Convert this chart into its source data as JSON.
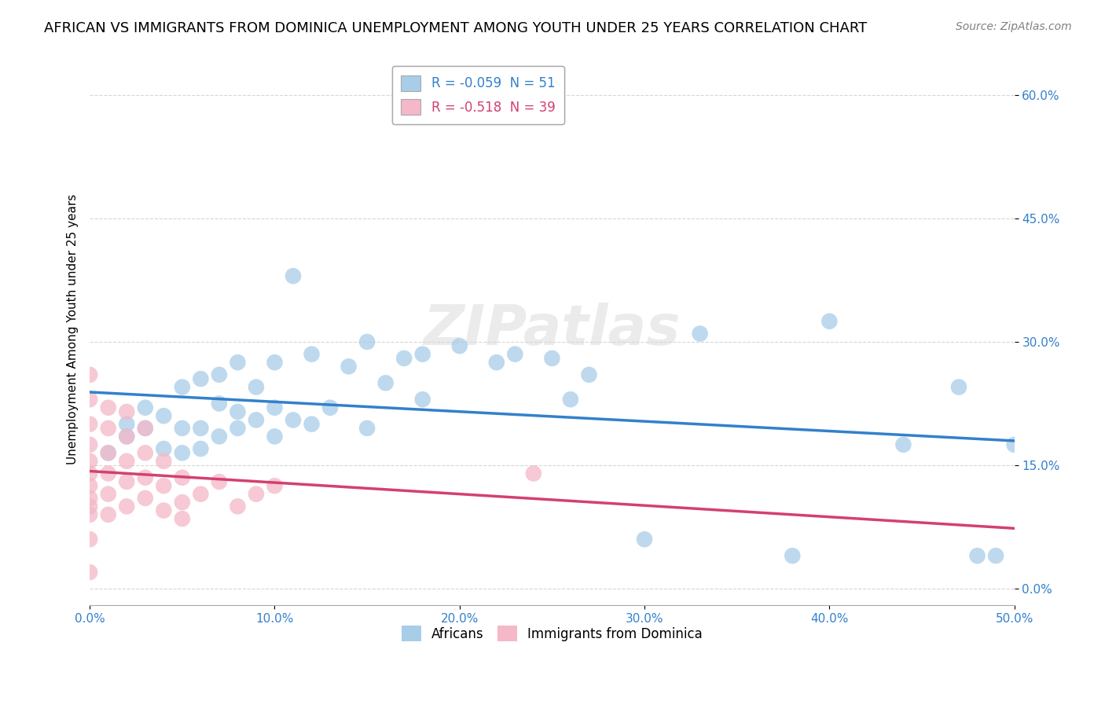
{
  "title": "AFRICAN VS IMMIGRANTS FROM DOMINICA UNEMPLOYMENT AMONG YOUTH UNDER 25 YEARS CORRELATION CHART",
  "source": "Source: ZipAtlas.com",
  "xlim": [
    0,
    0.5
  ],
  "ylim": [
    -0.02,
    0.65
  ],
  "legend_blue": "R = -0.059  N = 51",
  "legend_pink": "R = -0.518  N = 39",
  "legend_label_blue": "Africans",
  "legend_label_pink": "Immigrants from Dominica",
  "blue_color": "#a8cde8",
  "pink_color": "#f4b8c8",
  "blue_line_color": "#3380cc",
  "pink_line_color": "#d44070",
  "watermark_color": "#d8d8d8",
  "watermark_alpha": 0.5,
  "title_fontsize": 13,
  "source_fontsize": 10,
  "axis_label_fontsize": 11,
  "tick_fontsize": 11,
  "watermark_fontsize": 52,
  "africans_x": [
    0.01,
    0.02,
    0.02,
    0.03,
    0.03,
    0.04,
    0.04,
    0.05,
    0.05,
    0.05,
    0.06,
    0.06,
    0.06,
    0.07,
    0.07,
    0.07,
    0.08,
    0.08,
    0.08,
    0.09,
    0.09,
    0.1,
    0.1,
    0.1,
    0.11,
    0.11,
    0.12,
    0.12,
    0.13,
    0.14,
    0.15,
    0.15,
    0.16,
    0.17,
    0.18,
    0.18,
    0.2,
    0.22,
    0.23,
    0.25,
    0.26,
    0.27,
    0.3,
    0.33,
    0.38,
    0.4,
    0.44,
    0.47,
    0.48,
    0.49,
    0.5
  ],
  "africans_y": [
    0.165,
    0.185,
    0.2,
    0.195,
    0.22,
    0.17,
    0.21,
    0.165,
    0.195,
    0.245,
    0.17,
    0.195,
    0.255,
    0.185,
    0.225,
    0.26,
    0.195,
    0.215,
    0.275,
    0.205,
    0.245,
    0.185,
    0.22,
    0.275,
    0.205,
    0.38,
    0.2,
    0.285,
    0.22,
    0.27,
    0.195,
    0.3,
    0.25,
    0.28,
    0.23,
    0.285,
    0.295,
    0.275,
    0.285,
    0.28,
    0.23,
    0.26,
    0.06,
    0.31,
    0.04,
    0.325,
    0.175,
    0.245,
    0.04,
    0.04,
    0.175
  ],
  "dominica_x": [
    0.0,
    0.0,
    0.0,
    0.0,
    0.0,
    0.0,
    0.0,
    0.0,
    0.0,
    0.0,
    0.0,
    0.0,
    0.01,
    0.01,
    0.01,
    0.01,
    0.01,
    0.01,
    0.02,
    0.02,
    0.02,
    0.02,
    0.02,
    0.03,
    0.03,
    0.03,
    0.03,
    0.04,
    0.04,
    0.04,
    0.05,
    0.05,
    0.05,
    0.06,
    0.07,
    0.08,
    0.09,
    0.1,
    0.24
  ],
  "dominica_y": [
    0.23,
    0.26,
    0.175,
    0.2,
    0.155,
    0.14,
    0.125,
    0.11,
    0.1,
    0.09,
    0.06,
    0.02,
    0.22,
    0.195,
    0.165,
    0.14,
    0.115,
    0.09,
    0.215,
    0.185,
    0.155,
    0.13,
    0.1,
    0.195,
    0.165,
    0.135,
    0.11,
    0.155,
    0.125,
    0.095,
    0.135,
    0.105,
    0.085,
    0.115,
    0.13,
    0.1,
    0.115,
    0.125,
    0.14
  ]
}
